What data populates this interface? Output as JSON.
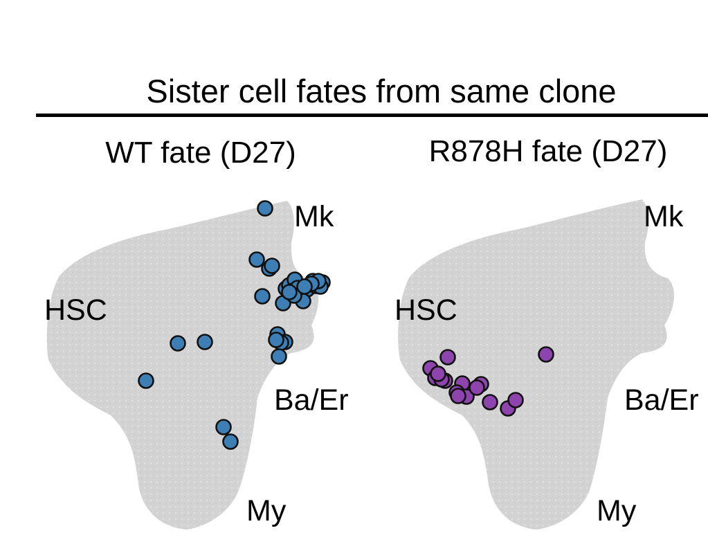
{
  "figure": {
    "title": "Sister cell fates from same clone"
  },
  "chart_data": [
    {
      "type": "scatter",
      "title": "WT fate (D27)",
      "region_labels": [
        "Mk",
        "HSC",
        "Ba/Er",
        "My"
      ],
      "background_color": "#d3d3d3",
      "point_color": "#3d7fb5",
      "point_count": 33
    },
    {
      "type": "scatter",
      "title": "R878H fate (D27)",
      "region_labels": [
        "Mk",
        "HSC",
        "Ba/Er",
        "My"
      ],
      "background_color": "#d3d3d3",
      "point_color": "#8e44ad",
      "point_count": 16
    }
  ]
}
